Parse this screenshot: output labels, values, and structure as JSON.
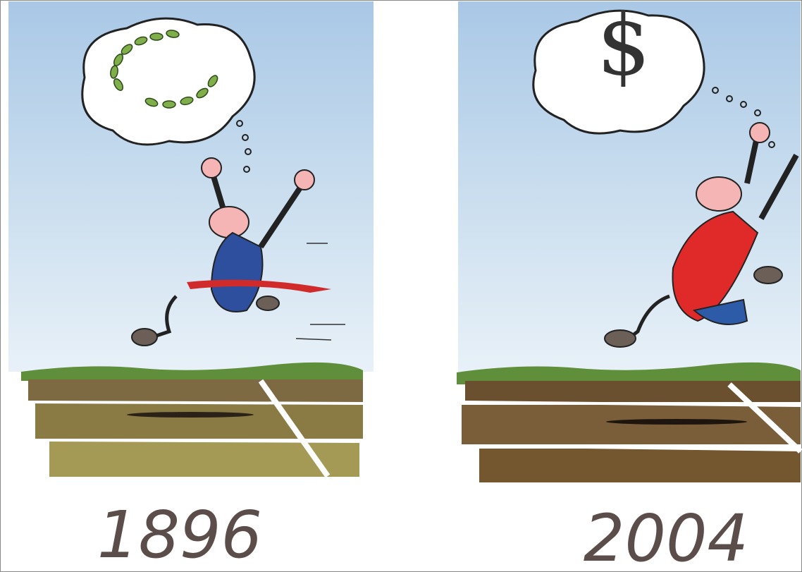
{
  "panels": [
    {
      "year": "1896"
    },
    {
      "year": "2004",
      "thought": "$"
    }
  ]
}
